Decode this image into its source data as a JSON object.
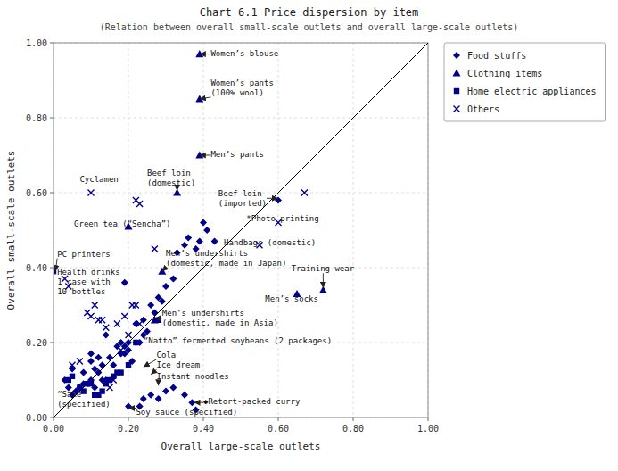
{
  "chart_data": {
    "type": "scatter",
    "title": "Chart 6.1 Price dispersion by item",
    "subtitle": "(Relation between overall small-scale outlets and overall large-scale outlets)",
    "x_label": "Overall large-scale outlets",
    "y_label": "Overall small-scale outlets",
    "xlim": [
      0.0,
      1.0
    ],
    "ylim": [
      0.0,
      1.0
    ],
    "xticks": [
      {
        "value": 0.0,
        "label": "0.00"
      },
      {
        "value": 0.2,
        "label": "0.20"
      },
      {
        "value": 0.4,
        "label": "0.40"
      },
      {
        "value": 0.6,
        "label": "0.60"
      },
      {
        "value": 0.8,
        "label": "0.80"
      },
      {
        "value": 1.0,
        "label": "1.00"
      }
    ],
    "yticks": [
      {
        "value": 0.0,
        "label": "0.00"
      },
      {
        "value": 0.2,
        "label": "0.20"
      },
      {
        "value": 0.4,
        "label": "0.40"
      },
      {
        "value": 0.6,
        "label": "0.60"
      },
      {
        "value": 0.8,
        "label": "0.80"
      },
      {
        "value": 1.0,
        "label": "1.00"
      }
    ],
    "grid": true,
    "legend": "right",
    "series": [
      {
        "name": "Food stuffs",
        "color": "#00008B",
        "marker": "diamond",
        "x": [
          0.03,
          0.04,
          0.05,
          0.05,
          0.06,
          0.07,
          0.08,
          0.08,
          0.09,
          0.1,
          0.1,
          0.1,
          0.11,
          0.11,
          0.12,
          0.12,
          0.13,
          0.13,
          0.14,
          0.14,
          0.15,
          0.16,
          0.17,
          0.18,
          0.18,
          0.19,
          0.19,
          0.2,
          0.2,
          0.21,
          0.22,
          0.22,
          0.23,
          0.24,
          0.24,
          0.25,
          0.26,
          0.27,
          0.28,
          0.29,
          0.3,
          0.32,
          0.33,
          0.35,
          0.36,
          0.38,
          0.39,
          0.4,
          0.41,
          0.43,
          0.19,
          0.2,
          0.23,
          0.24,
          0.26,
          0.28,
          0.3,
          0.32,
          0.35,
          0.37,
          0.38,
          0.6
        ],
        "values": [
          0.1,
          0.08,
          0.13,
          0.06,
          0.07,
          0.08,
          0.09,
          0.12,
          0.09,
          0.1,
          0.15,
          0.17,
          0.08,
          0.13,
          0.12,
          0.16,
          0.1,
          0.14,
          0.1,
          0.22,
          0.16,
          0.14,
          0.19,
          0.17,
          0.2,
          0.17,
          0.36,
          0.18,
          0.2,
          0.15,
          0.2,
          0.25,
          0.2,
          0.22,
          0.26,
          0.23,
          0.3,
          0.28,
          0.32,
          0.31,
          0.35,
          0.37,
          0.44,
          0.46,
          0.48,
          0.45,
          0.47,
          0.52,
          0.5,
          0.47,
          0.19,
          0.03,
          0.03,
          0.05,
          0.06,
          0.05,
          0.07,
          0.08,
          0.06,
          0.04,
          0.02,
          0.58
        ]
      },
      {
        "name": "Clothing items",
        "color": "#00008B",
        "marker": "triangle",
        "x": [
          0.2,
          0.33,
          0.39,
          0.39,
          0.39,
          0.65,
          0.72,
          0.27,
          0.29
        ],
        "values": [
          0.51,
          0.6,
          0.7,
          0.85,
          0.97,
          0.33,
          0.34,
          0.26,
          0.39
        ]
      },
      {
        "name": "Home electric appliances",
        "color": "#00008B",
        "marker": "square",
        "x": [
          0.0,
          0.04,
          0.05,
          0.07,
          0.08,
          0.09,
          0.1,
          0.11,
          0.12,
          0.13,
          0.14,
          0.15,
          0.16,
          0.17,
          0.18,
          0.2,
          0.22,
          0.28
        ],
        "values": [
          0.39,
          0.1,
          0.11,
          0.08,
          0.07,
          0.09,
          0.09,
          0.06,
          0.06,
          0.07,
          0.09,
          0.1,
          0.11,
          0.12,
          0.12,
          0.14,
          0.2,
          0.26
        ]
      },
      {
        "name": "Others",
        "color": "#00008B",
        "marker": "x",
        "x": [
          0.03,
          0.04,
          0.05,
          0.07,
          0.09,
          0.1,
          0.11,
          0.12,
          0.13,
          0.14,
          0.15,
          0.16,
          0.17,
          0.18,
          0.19,
          0.2,
          0.21,
          0.22,
          0.23,
          0.27,
          0.1,
          0.22,
          0.23,
          0.55,
          0.6,
          0.67
        ],
        "values": [
          0.37,
          0.35,
          0.14,
          0.15,
          0.28,
          0.27,
          0.3,
          0.26,
          0.26,
          0.24,
          0.08,
          0.1,
          0.25,
          0.18,
          0.27,
          0.22,
          0.3,
          0.3,
          0.25,
          0.45,
          0.6,
          0.58,
          0.57,
          0.46,
          0.52,
          0.6
        ]
      },
      {
        "type": "line",
        "color": "#000000",
        "x": [
          0,
          1
        ],
        "values": [
          0,
          1
        ]
      }
    ],
    "annotations": [
      {
        "text": "Women’s blouse",
        "x": 0.42,
        "y": 0.96,
        "arrow_x": 0.39,
        "arrow_y": 0.97
      },
      {
        "text": "Women’s pants\n(100% wool)",
        "x": 0.42,
        "y": 0.855,
        "arrow_x": 0.39,
        "arrow_y": 0.85
      },
      {
        "text": "Men’s pants",
        "x": 0.42,
        "y": 0.69,
        "arrow_x": 0.39,
        "arrow_y": 0.7
      },
      {
        "text": "Cyclamen",
        "x": 0.07,
        "y": 0.625
      },
      {
        "text": "Beef loin\n(domestic)",
        "x": 0.25,
        "y": 0.615,
        "arrow_x": 0.33,
        "arrow_y": 0.605
      },
      {
        "text": "Beef loin\n(imported)",
        "x": 0.44,
        "y": 0.56,
        "arrow_x": 0.6,
        "arrow_y": 0.585
      },
      {
        "text": "*Photo printing",
        "x": 0.515,
        "y": 0.52
      },
      {
        "text": "Green tea (“Sencha”)",
        "x": 0.055,
        "y": 0.505
      },
      {
        "text": "PC printers",
        "x": 0.01,
        "y": 0.425,
        "arrow_x": 0.005,
        "arrow_y": 0.39
      },
      {
        "text": "Handbags (domestic)",
        "x": 0.455,
        "y": 0.455
      },
      {
        "text": "Men’s undershirts\n(domestic, made in Japan)",
        "x": 0.3,
        "y": 0.4,
        "arrow_x": 0.29,
        "arrow_y": 0.39
      },
      {
        "text": "Training wear",
        "x": 0.635,
        "y": 0.385,
        "arrow_x": 0.72,
        "arrow_y": 0.345
      },
      {
        "text": "Men’s socks",
        "x": 0.565,
        "y": 0.305
      },
      {
        "text": "Health drinks\n1 case with\n10 bottles",
        "x": 0.01,
        "y": 0.325
      },
      {
        "text": "Men’s undershirts\n(domestic, made in Asia)",
        "x": 0.29,
        "y": 0.24,
        "arrow_x": 0.27,
        "arrow_y": 0.265
      },
      {
        "text": "“Natto” fermented soybeans (2 packages)",
        "x": 0.24,
        "y": 0.193
      },
      {
        "text": "Cola",
        "x": 0.275,
        "y": 0.155,
        "arrow_x": 0.24,
        "arrow_y": 0.135
      },
      {
        "text": "Ice dream",
        "x": 0.275,
        "y": 0.128,
        "arrow_x": 0.26,
        "arrow_y": 0.115
      },
      {
        "text": "Instant noodles",
        "x": 0.275,
        "y": 0.098,
        "arrow_x": 0.28,
        "arrow_y": 0.085
      },
      {
        "text": "“Sake”\n(specified)",
        "x": 0.01,
        "y": 0.025
      },
      {
        "text": "Soy sauce (specified)",
        "x": 0.22,
        "y": 0.003,
        "arrow_x": 0.2,
        "arrow_y": 0.025
      },
      {
        "text": "◆Retort-packed curry",
        "x": 0.4,
        "y": 0.03,
        "arrow_x": 0.375,
        "arrow_y": 0.04
      }
    ]
  }
}
